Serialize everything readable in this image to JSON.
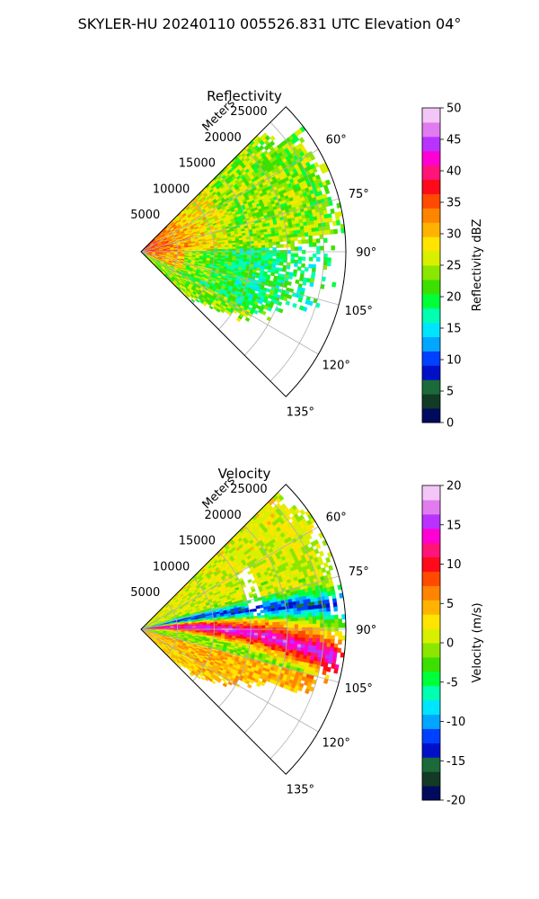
{
  "figure": {
    "suptitle": "SKYLER-HU  20240110  005526.831 UTC Elevation 04°"
  },
  "chart_data": [
    {
      "type": "heatmap",
      "projection": "polar-sector",
      "title": "Reflectivity",
      "radial_label": "Meters",
      "radial_ticks": [
        5000,
        10000,
        15000,
        20000,
        25000
      ],
      "r_max": 28000,
      "angular_ticks": [
        "60°",
        "75°",
        "90°",
        "105°",
        "120°",
        "135°"
      ],
      "angular_tick_values": [
        60,
        75,
        90,
        105,
        120,
        135
      ],
      "azimuth_range": [
        45,
        135
      ],
      "grid": true,
      "colorbar": {
        "label": "Reflectivity dBZ",
        "ticks": [
          0,
          5,
          10,
          15,
          20,
          25,
          30,
          35,
          40,
          45,
          50
        ],
        "range": [
          0,
          50
        ],
        "stops": [
          "#000b5e",
          "#123a24",
          "#1b6a3a",
          "#0010c8",
          "#0040ff",
          "#00a6ff",
          "#00e5ff",
          "#00ffb0",
          "#00ff3b",
          "#3ce000",
          "#8be600",
          "#d8f000",
          "#ffe400",
          "#ffb300",
          "#ff8400",
          "#ff4a00",
          "#ff0a1a",
          "#ff1478",
          "#ff00d4",
          "#b833ff",
          "#e07cf0",
          "#f3c6f7"
        ]
      },
      "field_description": "Mostly 15-30 dBZ across sector with 30-40 dBZ band near radar on west side"
    },
    {
      "type": "heatmap",
      "projection": "polar-sector",
      "title": "Velocity",
      "radial_label": "Meters",
      "radial_ticks": [
        5000,
        10000,
        15000,
        20000,
        25000
      ],
      "r_max": 28000,
      "angular_ticks": [
        "60°",
        "75°",
        "90°",
        "105°",
        "120°",
        "135°"
      ],
      "angular_tick_values": [
        60,
        75,
        90,
        105,
        120,
        135
      ],
      "azimuth_range": [
        45,
        135
      ],
      "grid": true,
      "colorbar": {
        "label": "Velocity (m/s)",
        "ticks": [
          -20,
          -15,
          -10,
          -5,
          0,
          5,
          10,
          15,
          20
        ],
        "range": [
          -20,
          20
        ],
        "stops": [
          "#000b5e",
          "#123a24",
          "#1b6a3a",
          "#0010c8",
          "#0040ff",
          "#00a6ff",
          "#00e5ff",
          "#00ffb0",
          "#00ff3b",
          "#3ce000",
          "#8be600",
          "#d8f000",
          "#ffe400",
          "#ffb300",
          "#ff8400",
          "#ff4a00",
          "#ff0a1a",
          "#ff1478",
          "#ff00d4",
          "#b833ff",
          "#e07cf0",
          "#f3c6f7"
        ]
      },
      "field_description": "Banded pattern: near-zero (yellow/green) in north, positive (red/magenta) band near 95-110°, negative (cyan) band near 90°"
    }
  ]
}
